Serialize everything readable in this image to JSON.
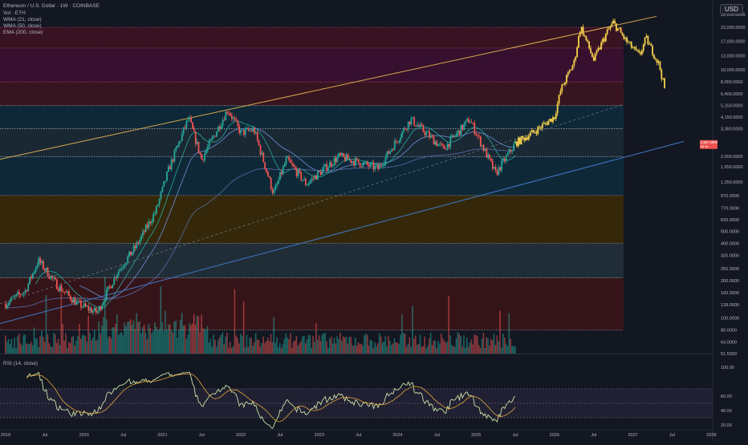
{
  "header": {
    "title": "Ethereum / U.S. Dollar · 1W · COINBASE",
    "indicators": [
      "Vol · ETH",
      "WMA (21, close)",
      "WMA (50, close)",
      "EMA (200, close)"
    ],
    "currency_button": "USD"
  },
  "rsi": {
    "label": "RSI (14, close)",
    "ticks": [
      "100.00",
      "60.00",
      "40.00",
      "20.00"
    ]
  },
  "price_badge": {
    "text": "2,557.4900",
    "subtext": "6d 4h"
  },
  "colors": {
    "up": "#26a69a",
    "down": "#ef5350",
    "projection": "#f7d24b",
    "upper_channel": "#d8a94e",
    "lower_channel": "#3f78c9",
    "background": "#131722"
  },
  "chart_data": {
    "type": "candlestick",
    "scale": "log",
    "title": "Ethereum / U.S. Dollar · 1W · COINBASE",
    "y_ticks": [
      "28,000.0000",
      "22,000.0000",
      "17,000.0000",
      "13,000.0000",
      "10,000.0000",
      "8,000.0000",
      "6,400.0000",
      "5,150.0000",
      "4,150.0000",
      "3,350.0000",
      "2,000.0000",
      "1,650.0000",
      "1,250.0000",
      "970.0000",
      "770.0000",
      "620.0000",
      "500.0000",
      "400.0000",
      "320.0000",
      "250.0000",
      "200.0000",
      "160.0000",
      "128.0000",
      "100.0000",
      "80.0000",
      "64.0000",
      "51.5000"
    ],
    "x_ticks": [
      "2019",
      "Jul",
      "2020",
      "Jul",
      "2021",
      "Jul",
      "2022",
      "Jul",
      "2023",
      "Jul",
      "2024",
      "Jul",
      "2025",
      "Jul",
      "2026",
      "Jul",
      "2027",
      "Jul",
      "2028"
    ],
    "horizontal_levels": [
      22000,
      15000,
      8000,
      5150,
      3350,
      2000,
      970,
      400,
      210,
      80
    ],
    "price_path": [
      [
        "2019-01",
        130
      ],
      [
        "2019-04",
        165
      ],
      [
        "2019-06",
        290
      ],
      [
        "2019-09",
        180
      ],
      [
        "2019-12",
        130
      ],
      [
        "2020-03",
        110
      ],
      [
        "2020-06",
        230
      ],
      [
        "2020-09",
        380
      ],
      [
        "2020-12",
        730
      ],
      [
        "2021-02",
        1600
      ],
      [
        "2021-05",
        4100
      ],
      [
        "2021-07",
        1900
      ],
      [
        "2021-11",
        4800
      ],
      [
        "2022-01",
        3100
      ],
      [
        "2022-03",
        3300
      ],
      [
        "2022-06",
        1000
      ],
      [
        "2022-08",
        1900
      ],
      [
        "2022-11",
        1200
      ],
      [
        "2023-04",
        2000
      ],
      [
        "2023-10",
        1600
      ],
      [
        "2024-03",
        4000
      ],
      [
        "2024-08",
        2300
      ],
      [
        "2024-12",
        4000
      ],
      [
        "2025-04",
        1450
      ],
      [
        "2025-07",
        2550
      ]
    ],
    "projection_path": [
      [
        "2025-07",
        2550
      ],
      [
        "2025-10",
        3200
      ],
      [
        "2026-01",
        4200
      ],
      [
        "2026-02",
        7000
      ],
      [
        "2026-04",
        11500
      ],
      [
        "2026-05",
        22500
      ],
      [
        "2026-07",
        12000
      ],
      [
        "2026-09",
        20000
      ],
      [
        "2026-10",
        24000
      ],
      [
        "2026-12",
        17000
      ],
      [
        "2027-02",
        13000
      ],
      [
        "2027-03",
        18000
      ],
      [
        "2027-05",
        11000
      ],
      [
        "2027-06",
        6500
      ]
    ],
    "indicators": [
      "WMA (21, close)",
      "WMA (50, close)",
      "EMA (200, close)",
      "Vol · ETH",
      "RSI (14, close)"
    ],
    "last_price": 2557.49,
    "grid": false,
    "legend": "top-left"
  }
}
